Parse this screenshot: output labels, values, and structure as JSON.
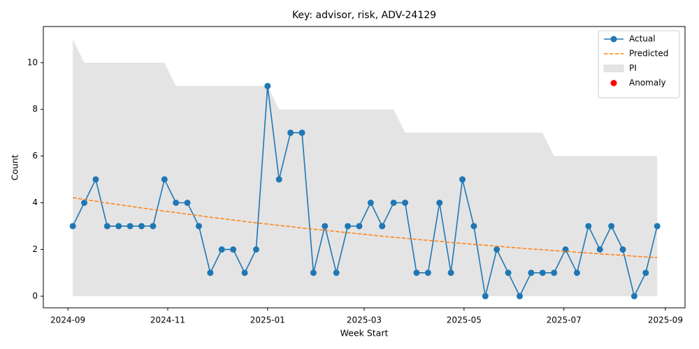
{
  "chart_data": {
    "type": "line",
    "title": "Key: advisor, risk, ADV-24129",
    "xlabel": "Week Start",
    "ylabel": "Count",
    "x": [
      "2024-09-04",
      "2024-09-11",
      "2024-09-18",
      "2024-09-25",
      "2024-10-02",
      "2024-10-09",
      "2024-10-16",
      "2024-10-23",
      "2024-10-30",
      "2024-11-06",
      "2024-11-13",
      "2024-11-20",
      "2024-11-27",
      "2024-12-04",
      "2024-12-11",
      "2024-12-18",
      "2024-12-25",
      "2025-01-01",
      "2025-01-08",
      "2025-01-15",
      "2025-01-22",
      "2025-01-29",
      "2025-02-05",
      "2025-02-12",
      "2025-02-19",
      "2025-02-26",
      "2025-03-05",
      "2025-03-12",
      "2025-03-19",
      "2025-03-26",
      "2025-04-02",
      "2025-04-09",
      "2025-04-16",
      "2025-04-23",
      "2025-04-30",
      "2025-05-07",
      "2025-05-14",
      "2025-05-21",
      "2025-05-28",
      "2025-06-04",
      "2025-06-11",
      "2025-06-18",
      "2025-06-25",
      "2025-07-02",
      "2025-07-09",
      "2025-07-16",
      "2025-07-23",
      "2025-07-30",
      "2025-08-06",
      "2025-08-13",
      "2025-08-20",
      "2025-08-27"
    ],
    "series": [
      {
        "name": "Actual",
        "color": "#1f77b4",
        "style": "solid",
        "marker": true,
        "values": [
          3,
          4,
          5,
          3,
          3,
          3,
          3,
          3,
          5,
          4,
          4,
          3,
          1,
          2,
          2,
          1,
          2,
          9,
          5,
          7,
          7,
          1,
          3,
          1,
          3,
          3,
          4,
          3,
          4,
          4,
          1,
          1,
          4,
          1,
          5,
          3,
          0,
          2,
          1,
          0,
          1,
          1,
          1,
          2,
          1,
          3,
          2,
          3,
          2,
          0,
          1,
          3
        ]
      },
      {
        "name": "Predicted",
        "color": "#ff7f0e",
        "style": "dashed",
        "marker": false,
        "values": [
          4.22,
          4.14,
          4.07,
          3.99,
          3.92,
          3.85,
          3.78,
          3.71,
          3.64,
          3.58,
          3.51,
          3.45,
          3.38,
          3.32,
          3.26,
          3.2,
          3.14,
          3.09,
          3.03,
          2.98,
          2.92,
          2.87,
          2.82,
          2.77,
          2.72,
          2.67,
          2.62,
          2.57,
          2.52,
          2.48,
          2.43,
          2.39,
          2.35,
          2.3,
          2.26,
          2.22,
          2.18,
          2.14,
          2.1,
          2.06,
          2.02,
          1.99,
          1.95,
          1.92,
          1.88,
          1.85,
          1.81,
          1.78,
          1.75,
          1.71,
          1.68,
          1.65
        ]
      }
    ],
    "interval": {
      "name": "PI",
      "color": "#d9d9d9",
      "upper": [
        11,
        10,
        10,
        10,
        10,
        10,
        10,
        10,
        10,
        9,
        9,
        9,
        9,
        9,
        9,
        9,
        9,
        9,
        8,
        8,
        8,
        8,
        8,
        8,
        8,
        8,
        8,
        8,
        8,
        7,
        7,
        7,
        7,
        7,
        7,
        7,
        7,
        7,
        7,
        7,
        7,
        7,
        6,
        6,
        6,
        6,
        6,
        6,
        6,
        6,
        6,
        6
      ],
      "lower": [
        0,
        0,
        0,
        0,
        0,
        0,
        0,
        0,
        0,
        0,
        0,
        0,
        0,
        0,
        0,
        0,
        0,
        0,
        0,
        0,
        0,
        0,
        0,
        0,
        0,
        0,
        0,
        0,
        0,
        0,
        0,
        0,
        0,
        0,
        0,
        0,
        0,
        0,
        0,
        0,
        0,
        0,
        0,
        0,
        0,
        0,
        0,
        0,
        0,
        0,
        0,
        0
      ]
    },
    "anomalies": {
      "name": "Anomaly",
      "color": "#ff0000",
      "x": [],
      "values": []
    },
    "xlim": [
      "2024-08-17",
      "2025-09-13"
    ],
    "xticks": [
      {
        "value": "2024-09-01",
        "label": "2024-09"
      },
      {
        "value": "2024-11-01",
        "label": "2024-11"
      },
      {
        "value": "2025-01-01",
        "label": "2025-01"
      },
      {
        "value": "2025-03-01",
        "label": "2025-03"
      },
      {
        "value": "2025-05-01",
        "label": "2025-05"
      },
      {
        "value": "2025-07-01",
        "label": "2025-07"
      },
      {
        "value": "2025-09-01",
        "label": "2025-09"
      }
    ],
    "ylim": [
      -0.5,
      11.55
    ],
    "yticks": [
      0,
      2,
      4,
      6,
      8,
      10
    ],
    "grid": false,
    "legend": "upper right"
  }
}
